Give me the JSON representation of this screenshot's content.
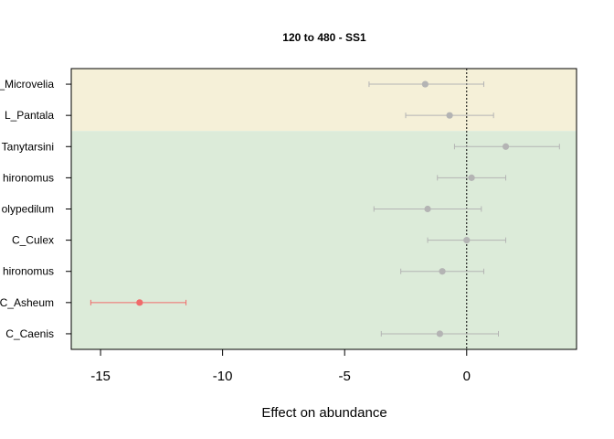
{
  "chart_data": {
    "type": "forest",
    "title": "120 to 480 - SS1",
    "xlabel": "Effect on abundance",
    "xlim": [
      -16.2,
      4.5
    ],
    "xticks": [
      -15,
      -10,
      -5,
      0
    ],
    "xtick_labels": [
      "-15",
      "-10",
      "-5",
      "0"
    ],
    "reference_line": 0,
    "bands": [
      {
        "rows": [
          0,
          1
        ],
        "color": "#f5f0d8"
      },
      {
        "rows": [
          2,
          8
        ],
        "color": "#dcebd9"
      }
    ],
    "rows": [
      {
        "label": "_Microvelia",
        "estimate": -1.7,
        "lower": -4.0,
        "upper": 0.7,
        "color": "#b4b4b4"
      },
      {
        "label": "L_Pantala",
        "estimate": -0.7,
        "lower": -2.5,
        "upper": 1.1,
        "color": "#b4b4b4"
      },
      {
        "label": "Tanytarsini",
        "estimate": 1.6,
        "lower": -0.5,
        "upper": 3.8,
        "color": "#b4b4b4"
      },
      {
        "label": "hironomus",
        "estimate": 0.2,
        "lower": -1.2,
        "upper": 1.6,
        "color": "#b4b4b4"
      },
      {
        "label": "olypedilum",
        "estimate": -1.6,
        "lower": -3.8,
        "upper": 0.6,
        "color": "#b4b4b4"
      },
      {
        "label": "C_Culex",
        "estimate": 0.0,
        "lower": -1.6,
        "upper": 1.6,
        "color": "#b4b4b4"
      },
      {
        "label": "hironomus",
        "estimate": -1.0,
        "lower": -2.7,
        "upper": 0.7,
        "color": "#b4b4b4"
      },
      {
        "label": "C_Asheum",
        "estimate": -13.4,
        "lower": -15.4,
        "upper": -11.5,
        "color": "#f06b6b"
      },
      {
        "label": "C_Caenis",
        "estimate": -1.1,
        "lower": -3.5,
        "upper": 1.3,
        "color": "#b4b4b4"
      }
    ]
  }
}
